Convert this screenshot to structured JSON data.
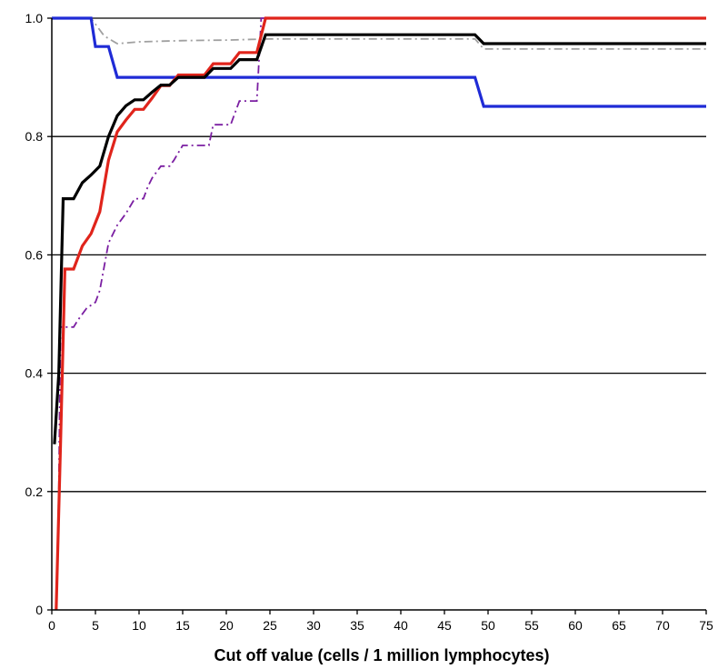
{
  "chart_data": {
    "type": "line",
    "title": "",
    "xlabel": "Cut off value (cells / 1 million lymphocytes)",
    "ylabel": "",
    "xlim": [
      0,
      75
    ],
    "ylim": [
      0,
      1.0
    ],
    "x_ticks": [
      0,
      5,
      10,
      15,
      20,
      25,
      30,
      35,
      40,
      45,
      50,
      55,
      60,
      65,
      70,
      75
    ],
    "y_ticks": [
      0,
      0.2,
      0.4,
      0.6,
      0.8,
      1.0
    ],
    "x_tick_labels": [
      "0",
      "5",
      "10",
      "15",
      "20",
      "25",
      "30",
      "35",
      "40",
      "45",
      "50",
      "55",
      "60",
      "65",
      "70",
      "75"
    ],
    "y_tick_labels": [
      "0",
      "0.2",
      "0.4",
      "0.6",
      "0.8",
      "1.0"
    ],
    "grid": "horizontal",
    "legend": "none",
    "series": [
      {
        "color": "#a0a0a0",
        "style": "dash-dot",
        "x": [
          0,
          4.5,
          6,
          7.5,
          10,
          15,
          20,
          25,
          30,
          35,
          40,
          45,
          48.5,
          49.5,
          55,
          60,
          65,
          70,
          75
        ],
        "y": [
          1.0,
          1.0,
          0.97,
          0.957,
          0.96,
          0.962,
          0.963,
          0.965,
          0.965,
          0.965,
          0.965,
          0.965,
          0.965,
          0.948,
          0.948,
          0.948,
          0.948,
          0.948,
          0.948
        ]
      },
      {
        "color": "#7b1fa2",
        "style": "dash-dot",
        "x": [
          0.5,
          0.8,
          1.0,
          2.5,
          3,
          4,
          5,
          5.5,
          6.5,
          7.5,
          8.5,
          9.5,
          10.5,
          11,
          11.5,
          12.5,
          13.5,
          14,
          15,
          16,
          17,
          18,
          18.5,
          19.5,
          20.5,
          21.5,
          22.5,
          23,
          23.5,
          24,
          24.5,
          30,
          40,
          50,
          60,
          70,
          75
        ],
        "y": [
          0.0,
          0.2,
          0.478,
          0.478,
          0.49,
          0.51,
          0.52,
          0.54,
          0.62,
          0.65,
          0.67,
          0.695,
          0.695,
          0.715,
          0.73,
          0.75,
          0.75,
          0.76,
          0.785,
          0.785,
          0.785,
          0.785,
          0.82,
          0.82,
          0.82,
          0.86,
          0.86,
          0.86,
          0.86,
          1.0,
          1.0,
          1.0,
          1.0,
          1.0,
          1.0,
          1.0,
          1.0
        ]
      },
      {
        "color": "#1f2bd6",
        "style": "solid",
        "x": [
          0,
          4.5,
          5,
          6.5,
          7.5,
          10,
          20,
          30,
          40,
          48.5,
          49.5,
          55,
          60,
          65,
          70,
          75
        ],
        "y": [
          1.0,
          1.0,
          0.952,
          0.952,
          0.9,
          0.9,
          0.9,
          0.9,
          0.9,
          0.9,
          0.851,
          0.851,
          0.851,
          0.851,
          0.851,
          0.851
        ]
      },
      {
        "color": "#e0241b",
        "style": "solid",
        "x": [
          0.5,
          1.0,
          1.5,
          2.5,
          3.5,
          4.5,
          5.5,
          6.5,
          7.5,
          8.5,
          9.5,
          10.5,
          11.5,
          12.5,
          13.5,
          14.5,
          15.5,
          16.5,
          17.5,
          18.5,
          19.5,
          20.5,
          21.5,
          22.5,
          23.5,
          24.5,
          30,
          40,
          50,
          60,
          70,
          75
        ],
        "y": [
          0.0,
          0.28,
          0.576,
          0.576,
          0.615,
          0.636,
          0.673,
          0.76,
          0.808,
          0.828,
          0.846,
          0.846,
          0.865,
          0.886,
          0.886,
          0.904,
          0.904,
          0.904,
          0.904,
          0.923,
          0.923,
          0.923,
          0.942,
          0.942,
          0.942,
          1.0,
          1.0,
          1.0,
          1.0,
          1.0,
          1.0,
          1.0
        ]
      },
      {
        "color": "#000000",
        "style": "solid",
        "x": [
          0.3,
          0.8,
          1.3,
          2.5,
          3.5,
          4.5,
          5.5,
          6.5,
          7.5,
          8.5,
          9.5,
          10.5,
          11.5,
          12.5,
          13.5,
          14.5,
          15.5,
          16.5,
          17.5,
          18.5,
          19.5,
          20.5,
          21.5,
          22.5,
          23.5,
          24.5,
          30,
          40,
          48.5,
          49.5,
          55,
          60,
          65,
          70,
          75
        ],
        "y": [
          0.28,
          0.4,
          0.695,
          0.695,
          0.722,
          0.735,
          0.75,
          0.8,
          0.835,
          0.852,
          0.862,
          0.862,
          0.875,
          0.887,
          0.887,
          0.9,
          0.9,
          0.9,
          0.9,
          0.915,
          0.915,
          0.915,
          0.93,
          0.93,
          0.93,
          0.972,
          0.972,
          0.972,
          0.972,
          0.957,
          0.957,
          0.957,
          0.957,
          0.957,
          0.957
        ]
      }
    ]
  }
}
